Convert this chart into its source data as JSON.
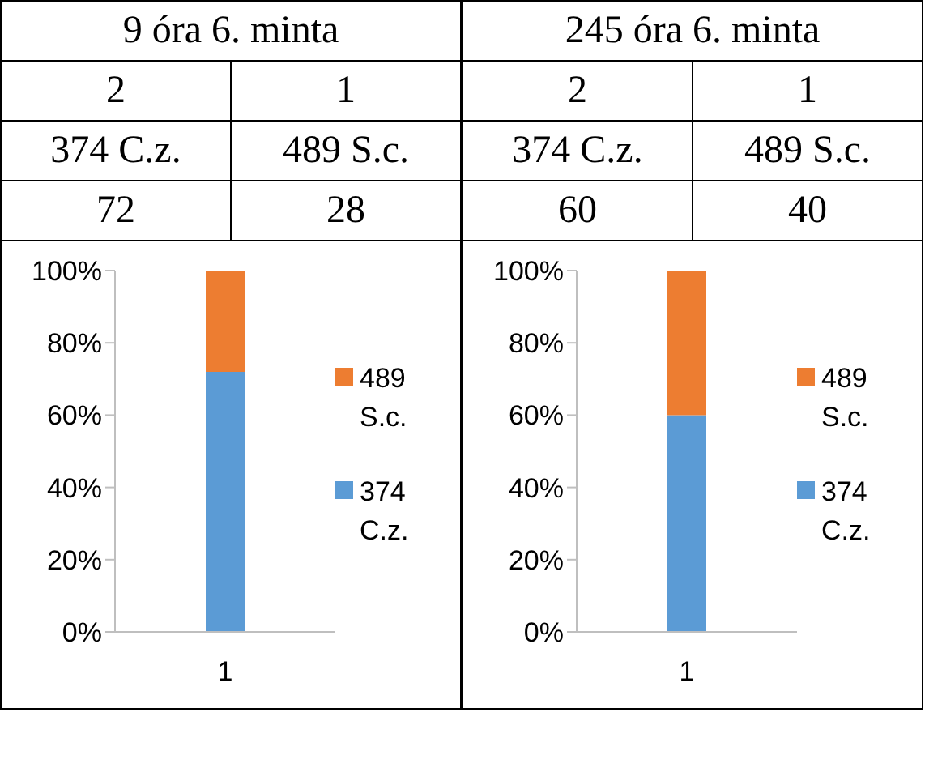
{
  "chart_data": [
    {
      "type": "bar",
      "title": "9 óra 6. minta",
      "annotations": [
        "2",
        "1",
        "72",
        "28"
      ],
      "categories": [
        "1"
      ],
      "stacked": true,
      "legend": "right",
      "ylim": [
        0,
        100
      ],
      "yticks": [
        {
          "value": 0,
          "label": "0%"
        },
        {
          "value": 20,
          "label": "20%"
        },
        {
          "value": 40,
          "label": "40%"
        },
        {
          "value": 60,
          "label": "60%"
        },
        {
          "value": 80,
          "label": "80%"
        },
        {
          "value": 100,
          "label": "100%"
        }
      ],
      "series": [
        {
          "name": "374 C.z.",
          "color": "#5b9bd5",
          "values": [
            72
          ]
        },
        {
          "name": "489 S.c.",
          "color": "#ed7d31",
          "values": [
            28
          ]
        }
      ]
    },
    {
      "type": "bar",
      "title": "245 óra 6. minta",
      "annotations": [
        "2",
        "1",
        "60",
        "40"
      ],
      "categories": [
        "1"
      ],
      "stacked": true,
      "legend": "right",
      "ylim": [
        0,
        100
      ],
      "yticks": [
        {
          "value": 0,
          "label": "0%"
        },
        {
          "value": 20,
          "label": "20%"
        },
        {
          "value": 40,
          "label": "40%"
        },
        {
          "value": 60,
          "label": "60%"
        },
        {
          "value": 80,
          "label": "80%"
        },
        {
          "value": 100,
          "label": "100%"
        }
      ],
      "series": [
        {
          "name": "374 C.z.",
          "color": "#5b9bd5",
          "values": [
            60
          ]
        },
        {
          "name": "489 S.c.",
          "color": "#ed7d31",
          "values": [
            40
          ]
        }
      ]
    }
  ]
}
